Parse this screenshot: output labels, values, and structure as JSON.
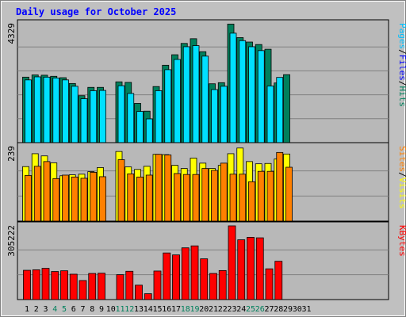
{
  "chart_data": {
    "type": "bar",
    "title": "Daily usage for October 2025",
    "categories": [
      "1",
      "2",
      "3",
      "4",
      "5",
      "6",
      "7",
      "8",
      "9",
      "10",
      "11",
      "12",
      "13",
      "14",
      "15",
      "16",
      "17",
      "18",
      "19",
      "20",
      "21",
      "22",
      "23",
      "24",
      "25",
      "26",
      "27",
      "28",
      "29",
      "30",
      "31"
    ],
    "weekend_days": [
      "4",
      "5",
      "11",
      "12",
      "18",
      "19",
      "25",
      "26"
    ],
    "colors": {
      "hits": "#00805c",
      "files": "#00e0ff",
      "pages": "#00e0ff",
      "visits": "#ffff00",
      "sites": "#ff8000",
      "kbytes": "#ff0000",
      "title": "#0000ff",
      "weekend_label": "#00805c",
      "weekday_label": "#000000"
    },
    "panels": [
      {
        "name": "hits-files-pages",
        "ymax": 4329,
        "ymax_label": "4329",
        "legend": [
          {
            "text": "Pages",
            "color": "#00c0ff"
          },
          {
            "text": "/",
            "color": "#000000"
          },
          {
            "text": "Files",
            "color": "#0000ff"
          },
          {
            "text": "/",
            "color": "#000000"
          },
          {
            "text": "Hits",
            "color": "#00805c"
          }
        ],
        "series": [
          {
            "name": "Hits",
            "values": [
              2370,
              2450,
              2440,
              2400,
              2350,
              2140,
              1700,
              2000,
              2000,
              null,
              2200,
              2180,
              1420,
              1140,
              2030,
              2800,
              3180,
              3590,
              3760,
              3290,
              2130,
              2170,
              4290,
              3800,
              3640,
              3550,
              3380,
              2160,
              2460,
              null,
              null
            ]
          },
          {
            "name": "Files",
            "values": [
              2270,
              2380,
              2370,
              2340,
              2270,
              2040,
              1590,
              1880,
              1890,
              null,
              2060,
              1780,
              1130,
              860,
              1880,
              2640,
              3010,
              3470,
              3510,
              3130,
              1920,
              2040,
              3960,
              3690,
              3470,
              3330,
              2050,
              2360,
              null,
              null,
              null
            ]
          }
        ]
      },
      {
        "name": "visits-sites",
        "ymax": 239,
        "ymax_label": "239",
        "legend": [
          {
            "text": "Sites",
            "color": "#ff8000"
          },
          {
            "text": "/",
            "color": "#000000"
          },
          {
            "text": "Visits",
            "color": "#ffff00"
          }
        ],
        "series": [
          {
            "name": "Visits",
            "values": [
              173,
              214,
              207,
              185,
              144,
              147,
              149,
              157,
              170,
              null,
              221,
              172,
              164,
              174,
              212,
              211,
              177,
              167,
              200,
              184,
              167,
              177,
              214,
              232,
              189,
              182,
              183,
              197,
              213,
              null,
              null
            ]
          },
          {
            "name": "Sites",
            "values": [
              145,
              174,
              189,
              135,
              146,
              140,
              136,
              155,
              141,
              null,
              195,
              150,
              140,
              146,
              212,
              210,
              151,
              148,
              148,
              167,
              161,
              184,
              149,
              149,
              125,
              158,
              158,
              218,
              171,
              null,
              null
            ]
          }
        ]
      },
      {
        "name": "kbytes",
        "ymax": 305222,
        "ymax_label": "305222",
        "legend": [
          {
            "text": "KBytes",
            "color": "#ff0000"
          }
        ],
        "series": [
          {
            "name": "KBytes",
            "values": [
              120000,
              122000,
              128000,
              115000,
              118000,
              104000,
              78000,
              107000,
              108000,
              null,
              102000,
              116000,
              59000,
              24000,
              117000,
              191000,
              183000,
              212000,
              220000,
              167000,
              107000,
              119000,
              302000,
              245000,
              255000,
              253000,
              126000,
              157000,
              null,
              null,
              null
            ]
          }
        ]
      }
    ]
  }
}
